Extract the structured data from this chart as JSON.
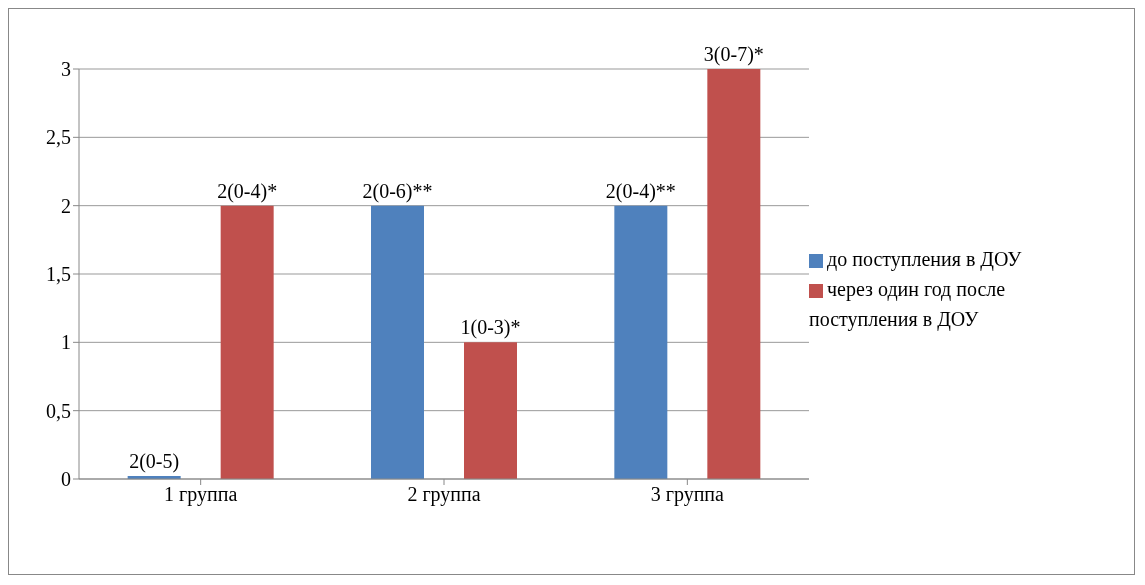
{
  "chart_data": {
    "type": "bar",
    "categories": [
      "1 группа",
      "2 группа",
      "3 группа"
    ],
    "series": [
      {
        "name": "до поступления в ДОУ",
        "color": "#4f81bd",
        "values": [
          0,
          2,
          2
        ],
        "value_labels": [
          "2(0-5)",
          "2(0-6)**",
          "2(0-4)**"
        ]
      },
      {
        "name": "через один год после поступления в ДОУ",
        "color": "#c0504d",
        "values": [
          2,
          1,
          3
        ],
        "value_labels": [
          "2(0-4)*",
          "1(0-3)*",
          "3(0-7)*"
        ]
      }
    ],
    "ylim": [
      0,
      3
    ],
    "yticks": [
      0,
      {
        "value": 0.5,
        "label": "0,5"
      },
      1,
      {
        "value": 1.5,
        "label": "1,5"
      },
      2,
      {
        "value": 2.5,
        "label": "2,5"
      },
      3
    ],
    "grid": "y",
    "legend": "right"
  }
}
